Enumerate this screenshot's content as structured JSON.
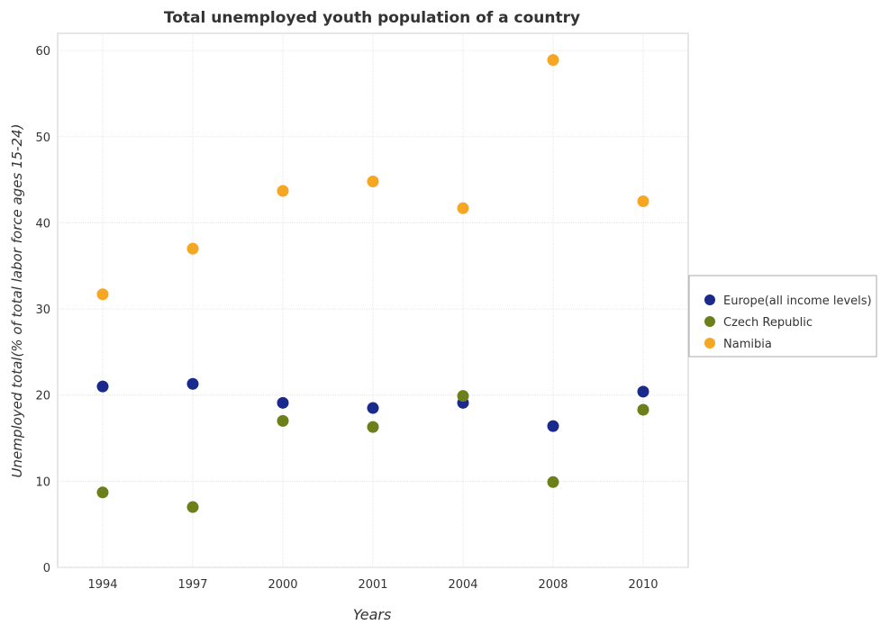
{
  "chart_data": {
    "type": "scatter",
    "title": "Total unemployed youth population of a country",
    "xlabel": "Years",
    "ylabel": "Unemployed total(% of total labor force ages 15-24)",
    "categories": [
      "1994",
      "1997",
      "2000",
      "2001",
      "2004",
      "2008",
      "2010"
    ],
    "ylim": [
      0,
      62
    ],
    "yticks": [
      0,
      10,
      20,
      30,
      40,
      50,
      60
    ],
    "grid": true,
    "legend_position": "right",
    "series": [
      {
        "name": "Europe(all income levels)",
        "color": "#1a2a8c",
        "values": [
          21.0,
          21.3,
          19.1,
          18.5,
          19.1,
          16.4,
          20.4
        ]
      },
      {
        "name": "Czech Republic",
        "color": "#6b7f1a",
        "values": [
          8.7,
          7.0,
          17.0,
          16.3,
          19.9,
          9.9,
          18.3
        ]
      },
      {
        "name": "Namibia",
        "color": "#f5a623",
        "values": [
          31.7,
          37.0,
          43.7,
          44.8,
          41.7,
          58.9,
          42.5
        ]
      }
    ]
  }
}
